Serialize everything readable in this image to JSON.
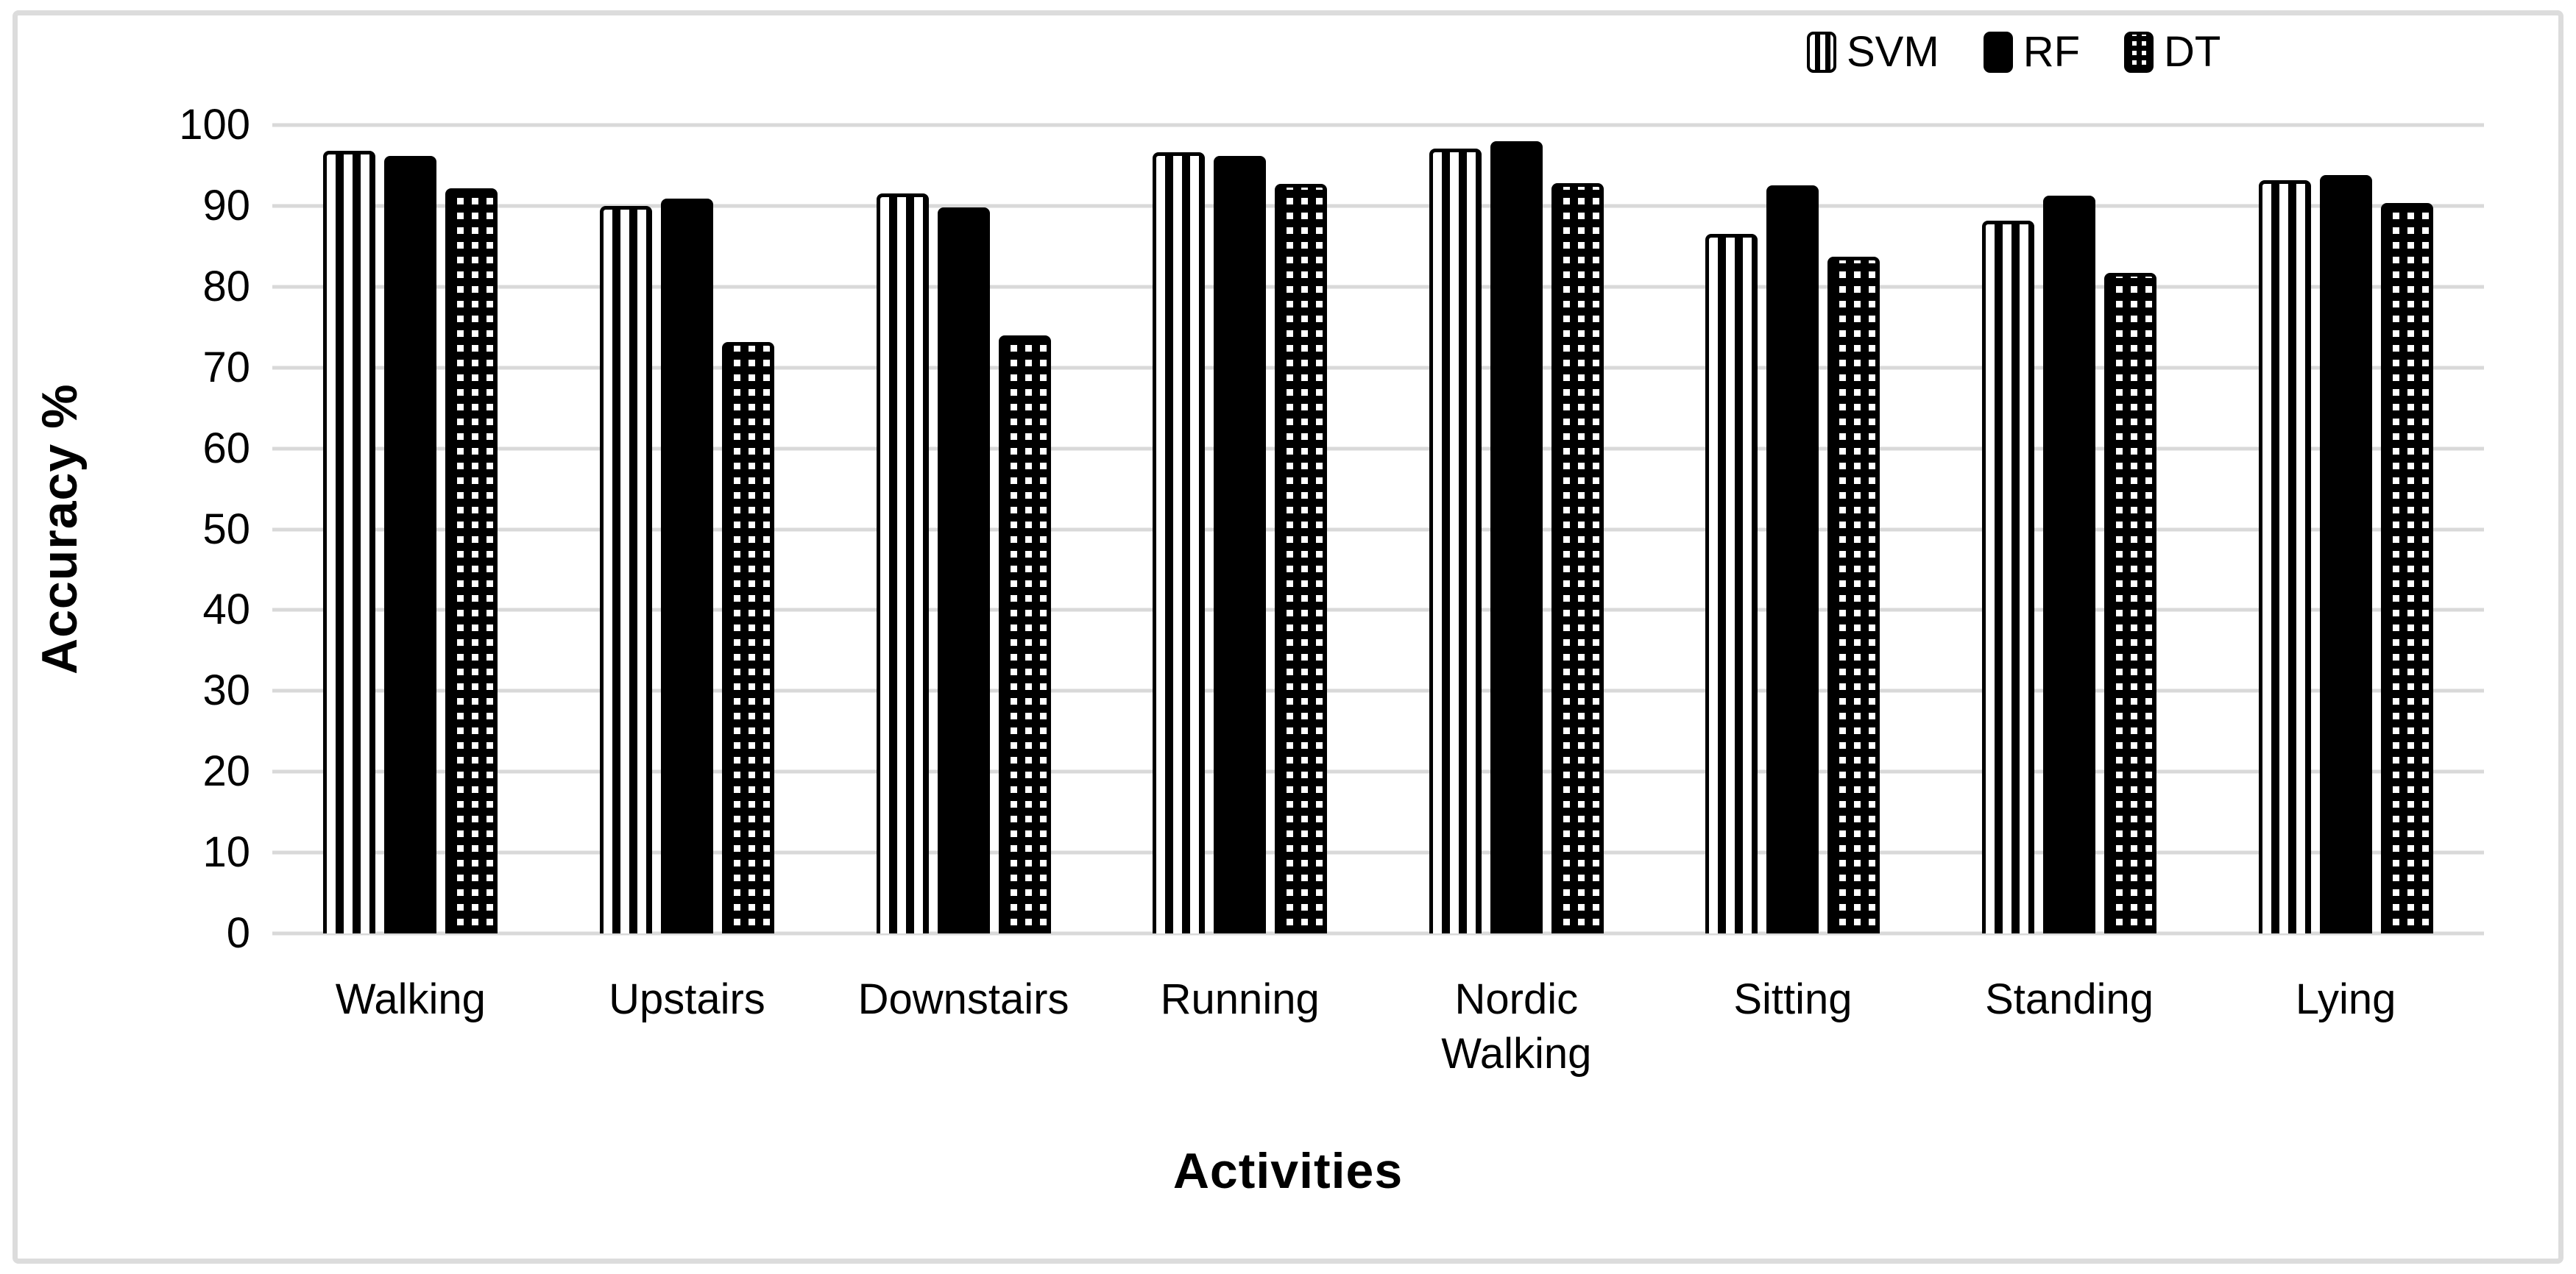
{
  "colors": {
    "bar_fill": "#000000",
    "gridline": "#d9d9d9",
    "frame_border": "#dcdcdc",
    "background": "#ffffff",
    "text": "#000000"
  },
  "chart_data": {
    "type": "bar",
    "title": "",
    "xlabel": "Activities",
    "ylabel": "Accuracy %",
    "ylim": [
      0,
      100
    ],
    "ytick_step": 10,
    "grid": true,
    "legend_position": "top-right",
    "categories": [
      "Walking",
      "Upstairs",
      "Downstairs",
      "Running",
      "Nordic Walking",
      "Sitting",
      "Standing",
      "Lying"
    ],
    "series": [
      {
        "name": "SVM",
        "pattern": "vertical-stripes",
        "values": [
          96.8,
          90.0,
          91.5,
          96.6,
          97.1,
          86.5,
          88.2,
          93.2
        ]
      },
      {
        "name": "RF",
        "pattern": "solid-black",
        "values": [
          96.2,
          90.9,
          89.8,
          96.2,
          98.0,
          92.5,
          91.3,
          93.8
        ]
      },
      {
        "name": "DT",
        "pattern": "checker-dots",
        "values": [
          92.2,
          73.2,
          74.0,
          92.7,
          92.8,
          83.7,
          81.7,
          90.4
        ]
      }
    ]
  }
}
